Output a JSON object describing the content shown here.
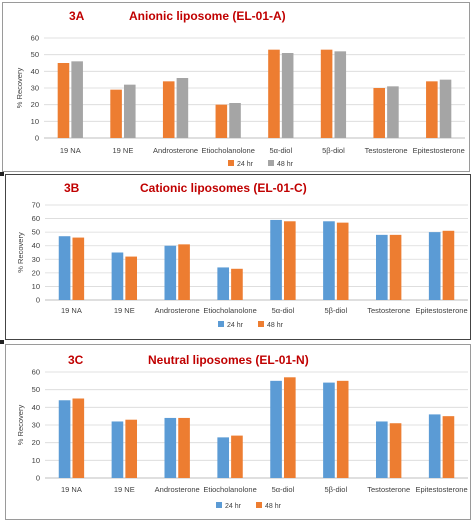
{
  "chart_data": [
    {
      "type": "bar",
      "label": "3A",
      "title": "Anionic liposome (EL-01-A)",
      "xlabel": "",
      "ylabel": "% Recovery",
      "ylim": [
        0,
        60
      ],
      "yticks": [
        0,
        10,
        20,
        30,
        40,
        50,
        60
      ],
      "grid": true,
      "legend_position": "bottom-right",
      "categories": [
        "19 NA",
        "19 NE",
        "Androsterone",
        "Etiocholanolone",
        "5α-diol",
        "5β-diol",
        "Testosterone",
        "Epitestosterone"
      ],
      "series": [
        {
          "name": "24 hr",
          "color": "#ed7d31",
          "values": [
            45,
            29,
            34,
            20,
            53,
            53,
            30,
            34
          ]
        },
        {
          "name": "48 hr",
          "color": "#a5a5a5",
          "values": [
            46,
            32,
            36,
            21,
            51,
            52,
            31,
            35
          ]
        }
      ]
    },
    {
      "type": "bar",
      "label": "3B",
      "title": "Cationic liposomes (EL-01-C)",
      "xlabel": "",
      "ylabel": "% Recovery",
      "ylim": [
        0,
        70
      ],
      "yticks": [
        0,
        10,
        20,
        30,
        40,
        50,
        60,
        70
      ],
      "grid": true,
      "legend_position": "bottom-right",
      "categories": [
        "19 NA",
        "19 NE",
        "Androsterone",
        "Etiocholanolone",
        "5α-diol",
        "5β-diol",
        "Testosterone",
        "Epitestosterone"
      ],
      "series": [
        {
          "name": "24 hr",
          "color": "#5b9bd5",
          "values": [
            47,
            35,
            40,
            24,
            59,
            58,
            48,
            50
          ]
        },
        {
          "name": "48 hr",
          "color": "#ed7d31",
          "values": [
            46,
            32,
            41,
            23,
            58,
            57,
            48,
            51
          ]
        }
      ]
    },
    {
      "type": "bar",
      "label": "3C",
      "title": "Neutral liposomes (EL-01-N)",
      "xlabel": "",
      "ylabel": "% Recovery",
      "ylim": [
        0,
        60
      ],
      "yticks": [
        0,
        10,
        20,
        30,
        40,
        50,
        60
      ],
      "grid": true,
      "legend_position": "bottom-right",
      "categories": [
        "19 NA",
        "19 NE",
        "Androsterone",
        "Etiocholanolone",
        "5α-diol",
        "5β-diol",
        "Testosterone",
        "Epitestosterone"
      ],
      "series": [
        {
          "name": "24 hr",
          "color": "#5b9bd5",
          "values": [
            44,
            32,
            34,
            23,
            55,
            54,
            32,
            36
          ]
        },
        {
          "name": "48 hr",
          "color": "#ed7d31",
          "values": [
            45,
            33,
            34,
            24,
            57,
            55,
            31,
            35
          ]
        }
      ]
    }
  ]
}
